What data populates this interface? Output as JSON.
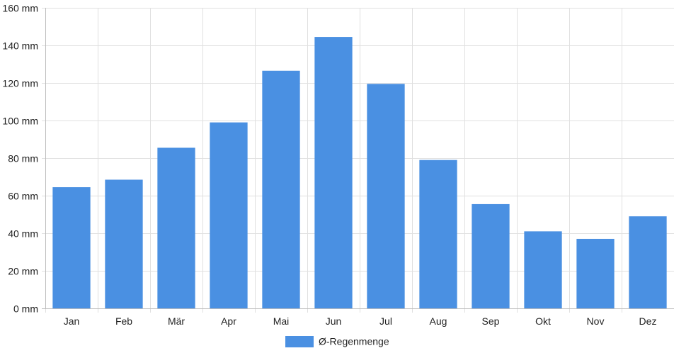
{
  "chart_data": {
    "type": "bar",
    "categories": [
      "Jan",
      "Feb",
      "Mär",
      "Apr",
      "Mai",
      "Jun",
      "Jul",
      "Aug",
      "Sep",
      "Okt",
      "Nov",
      "Dez"
    ],
    "series": [
      {
        "name": "Ø-Regenmenge",
        "values": [
          64.5,
          68.5,
          85.5,
          99,
          126.5,
          144.5,
          119.5,
          79,
          55.5,
          41,
          37,
          49
        ],
        "color": "#4a90e2"
      }
    ],
    "title": "",
    "xlabel": "",
    "ylabel": "",
    "ylim": [
      0,
      160
    ],
    "yticks": [
      0,
      20,
      40,
      60,
      80,
      100,
      120,
      140,
      160
    ],
    "y_unit": "mm",
    "grid": true,
    "legend_position": "bottom"
  }
}
